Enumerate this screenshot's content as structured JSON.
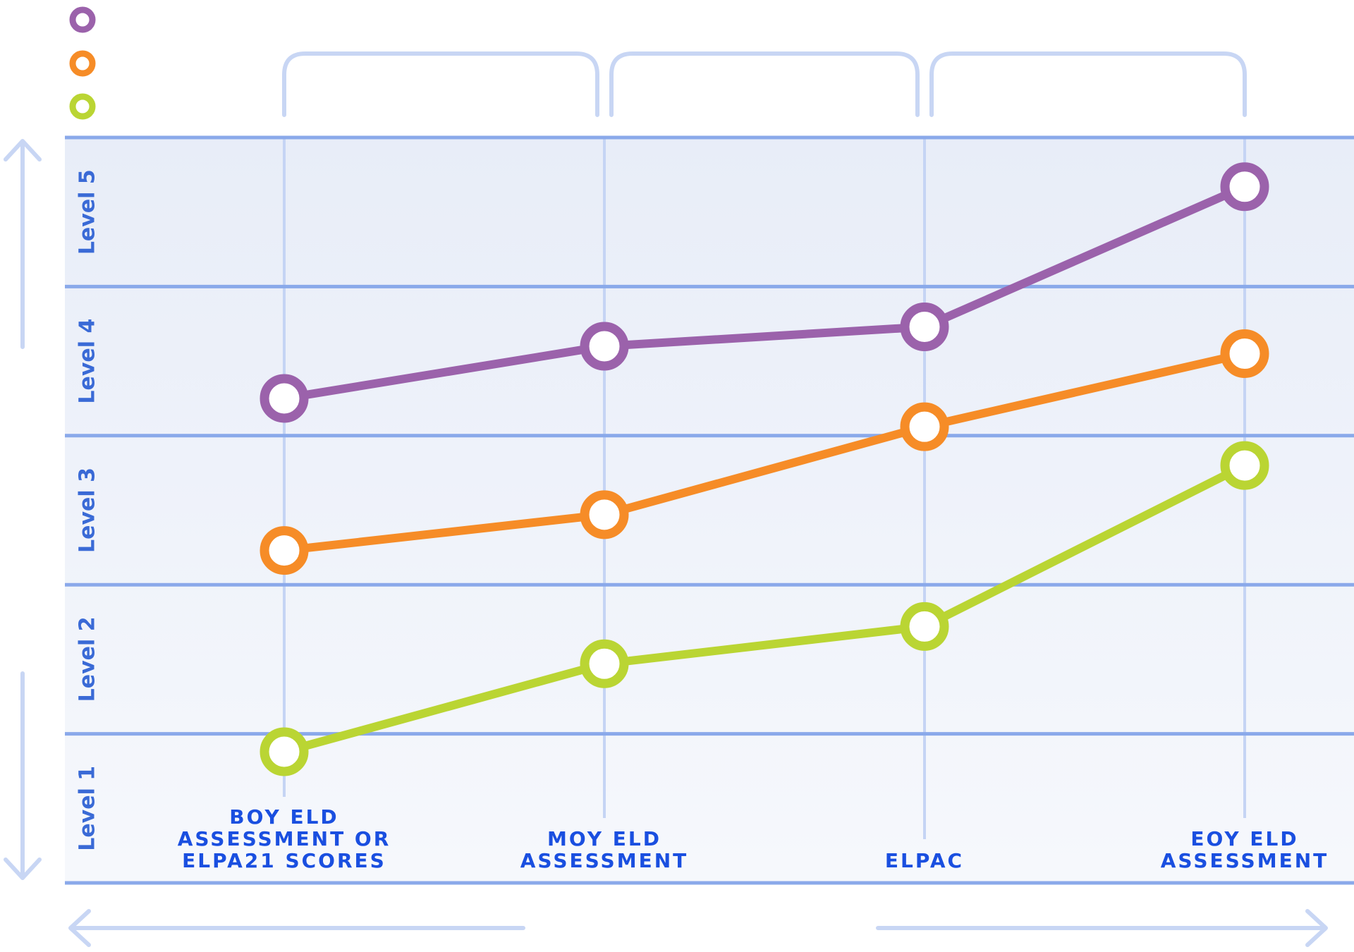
{
  "chart_data": {
    "type": "line",
    "categories": [
      "BOY ELD ASSESSMENT OR ELPA21 SCORES",
      "MOY ELD ASSESSMENT",
      "ELPAC",
      "EOY ELD ASSESSMENT"
    ],
    "category_lines": [
      [
        "BOY ELD",
        "ASSESSMENT OR",
        "ELPA21 SCORES"
      ],
      [
        "MOY ELD",
        "ASSESSMENT"
      ],
      [
        "ELPAC"
      ],
      [
        "EOY ELD",
        "ASSESSMENT"
      ]
    ],
    "y_levels": [
      "Level 1",
      "Level 2",
      "Level 3",
      "Level 4",
      "Level 5"
    ],
    "ylim": [
      0,
      5
    ],
    "series": [
      {
        "color": "#9b62ab",
        "values": [
          3.25,
          3.6,
          3.73,
          4.67
        ]
      },
      {
        "color": "#f68c27",
        "values": [
          2.23,
          2.47,
          3.06,
          3.55
        ]
      },
      {
        "color": "#bad533",
        "values": [
          0.88,
          1.47,
          1.72,
          2.8
        ]
      }
    ],
    "grid": true,
    "legend": "top-left",
    "colors": {
      "band_top": "#e8edf8",
      "band_bottom": "#f6f8fc",
      "grid": "#8aa9ea",
      "vline": "#c5d4f4",
      "decor": "#c8d6f4"
    }
  }
}
